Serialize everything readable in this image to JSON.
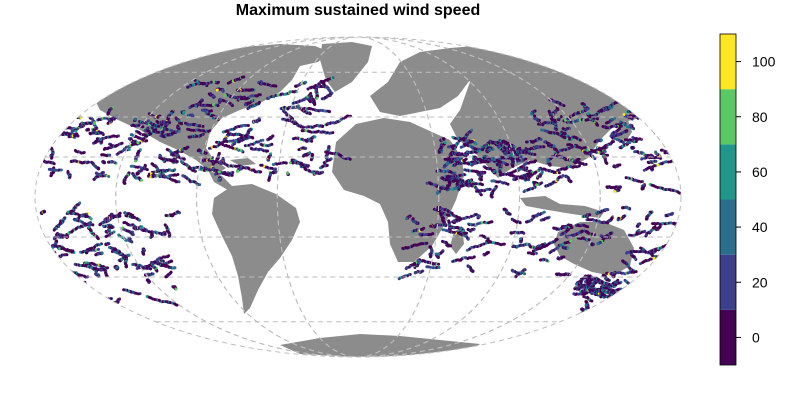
{
  "title": "Maximum sustained wind speed",
  "map": {
    "projection": "mollweide",
    "land_color": "#8c8c8c",
    "graticule_color": "#bdbdbd",
    "ocean_color": "#ffffff"
  },
  "legend": {
    "ticks": [
      "0",
      "20",
      "40",
      "60",
      "80",
      "100"
    ],
    "bins": [
      {
        "from": -10,
        "to": 10,
        "color": "#440154"
      },
      {
        "from": 10,
        "to": 30,
        "color": "#3b3f8c"
      },
      {
        "from": 30,
        "to": 50,
        "color": "#2a6e8e"
      },
      {
        "from": 50,
        "to": 70,
        "color": "#21968b"
      },
      {
        "from": 70,
        "to": 90,
        "color": "#5cc863"
      },
      {
        "from": 90,
        "to": 110,
        "color": "#fde725"
      }
    ],
    "range": [
      -10,
      110
    ]
  }
}
